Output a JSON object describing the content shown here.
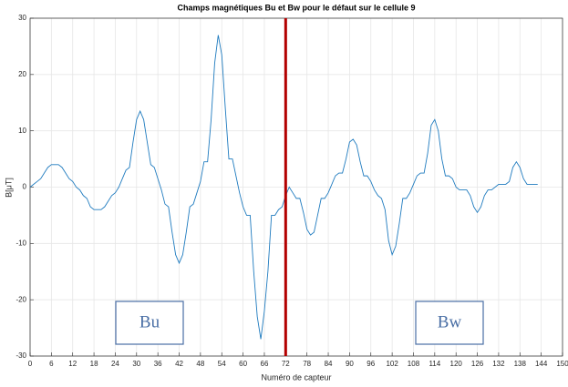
{
  "chart_data": {
    "type": "line",
    "title": "Champs magnétiques Bu et Bw pour le défaut sur le cellule 9",
    "xlabel": "Numéro de capteur",
    "ylabel": "B[μT]",
    "x": [
      0,
      1,
      2,
      3,
      4,
      5,
      6,
      7,
      8,
      9,
      10,
      11,
      12,
      13,
      14,
      15,
      16,
      17,
      18,
      19,
      20,
      21,
      22,
      23,
      24,
      25,
      26,
      27,
      28,
      29,
      30,
      31,
      32,
      33,
      34,
      35,
      36,
      37,
      38,
      39,
      40,
      41,
      42,
      43,
      44,
      45,
      46,
      47,
      48,
      49,
      50,
      51,
      52,
      53,
      54,
      55,
      56,
      57,
      58,
      59,
      60,
      61,
      62,
      63,
      64,
      65,
      66,
      67,
      68,
      69,
      70,
      71,
      72,
      73,
      74,
      75,
      76,
      77,
      78,
      79,
      80,
      81,
      82,
      83,
      84,
      85,
      86,
      87,
      88,
      89,
      90,
      91,
      92,
      93,
      94,
      95,
      96,
      97,
      98,
      99,
      100,
      101,
      102,
      103,
      104,
      105,
      106,
      107,
      108,
      109,
      110,
      111,
      112,
      113,
      114,
      115,
      116,
      117,
      118,
      119,
      120,
      121,
      122,
      123,
      124,
      125,
      126,
      127,
      128,
      129,
      130,
      131,
      132,
      133,
      134,
      135,
      136,
      137,
      138,
      139,
      140,
      141,
      142,
      143
    ],
    "series": [
      {
        "name": "B",
        "color": "#1f7bbf",
        "values": [
          0,
          0.5,
          1,
          1.5,
          2.5,
          3.5,
          4,
          4,
          4,
          3.5,
          2.5,
          1.5,
          1,
          0,
          -0.5,
          -1.5,
          -2,
          -3.5,
          -4,
          -4,
          -4,
          -3.5,
          -2.5,
          -1.5,
          -1,
          0,
          1.5,
          3,
          3.5,
          8,
          12,
          13.5,
          12,
          8,
          4,
          3.5,
          1.5,
          -0.5,
          -3,
          -3.5,
          -8,
          -12,
          -13.5,
          -12,
          -8,
          -3.5,
          -3,
          -1,
          1,
          4.5,
          4.5,
          12,
          22,
          27,
          23.5,
          14,
          5,
          5,
          2,
          -1,
          -3.5,
          -5,
          -5,
          -15,
          -23,
          -27,
          -22,
          -15,
          -5,
          -5,
          -4,
          -3.5,
          -1.5,
          0,
          -1,
          -2,
          -2,
          -4.5,
          -7.5,
          -8.5,
          -8,
          -5,
          -2,
          -2,
          -1,
          0.5,
          2,
          2.5,
          2.5,
          5,
          8,
          8.5,
          7.5,
          4.5,
          2,
          2,
          1,
          -0.5,
          -1.5,
          -2,
          -4,
          -9.5,
          -12,
          -10.5,
          -6.5,
          -2,
          -2,
          -1,
          0.5,
          2,
          2.5,
          2.5,
          6,
          11,
          12,
          10,
          5,
          2,
          2,
          1.5,
          0,
          -0.5,
          -0.5,
          -0.5,
          -1.5,
          -3.5,
          -4.5,
          -3.5,
          -1.5,
          -0.5,
          -0.5,
          0,
          0.5,
          0.5,
          0.5,
          1,
          3.5,
          4.5,
          3.5,
          1.5,
          0.5,
          0.5,
          0.5,
          0.5
        ]
      }
    ],
    "xlim": [
      0,
      150
    ],
    "ylim": [
      -30,
      30
    ],
    "xticks": [
      0,
      6,
      12,
      18,
      24,
      30,
      36,
      42,
      48,
      54,
      60,
      66,
      72,
      78,
      84,
      90,
      96,
      102,
      108,
      114,
      120,
      126,
      132,
      138,
      144,
      150
    ],
    "yticks": [
      -30,
      -20,
      -10,
      0,
      10,
      20,
      30
    ],
    "grid": true,
    "vline": 72,
    "vline_color": "#b30000",
    "annotations": [
      "Bu",
      "Bw"
    ]
  }
}
